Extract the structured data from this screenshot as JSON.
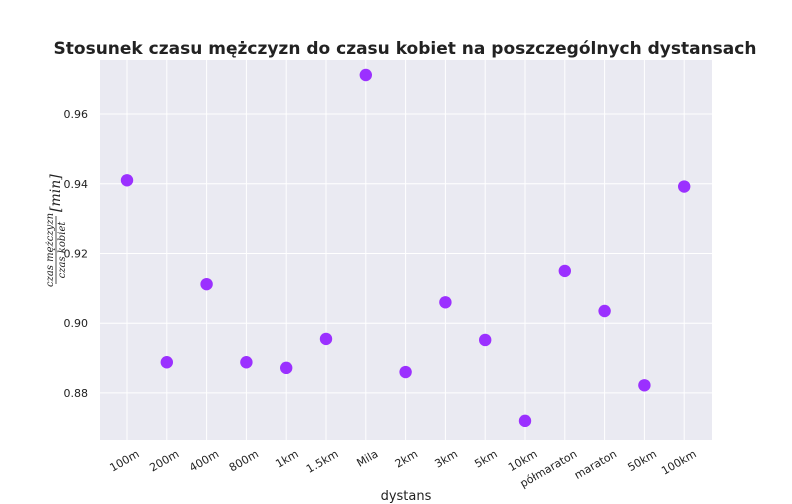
{
  "chart_data": {
    "type": "scatter",
    "title": "Stosunek czasu mężczyzn do czasu kobiet na poszczególnych dystansach",
    "xlabel": "dystans",
    "ylabel": {
      "numerator": "czas mężczyzn",
      "denominator": "czas kobiet",
      "unit": "[min]"
    },
    "categories": [
      "100m",
      "200m",
      "400m",
      "800m",
      "1km",
      "1.5km",
      "Mila",
      "2km",
      "3km",
      "5km",
      "10km",
      "półmaraton",
      "maraton",
      "50km",
      "100km"
    ],
    "values": [
      0.941,
      0.8888,
      0.9112,
      0.8888,
      0.8872,
      0.8955,
      0.9712,
      0.886,
      0.906,
      0.8952,
      0.872,
      0.915,
      0.9035,
      0.8822,
      0.9392
    ],
    "ylim": [
      0.8665,
      0.9755
    ],
    "yticks": [
      "0.88",
      "0.90",
      "0.92",
      "0.94",
      "0.96"
    ],
    "grid": true,
    "marker_color": "#9b30ff",
    "background_color": "#eaeaf2",
    "grid_color": "#ffffff"
  }
}
